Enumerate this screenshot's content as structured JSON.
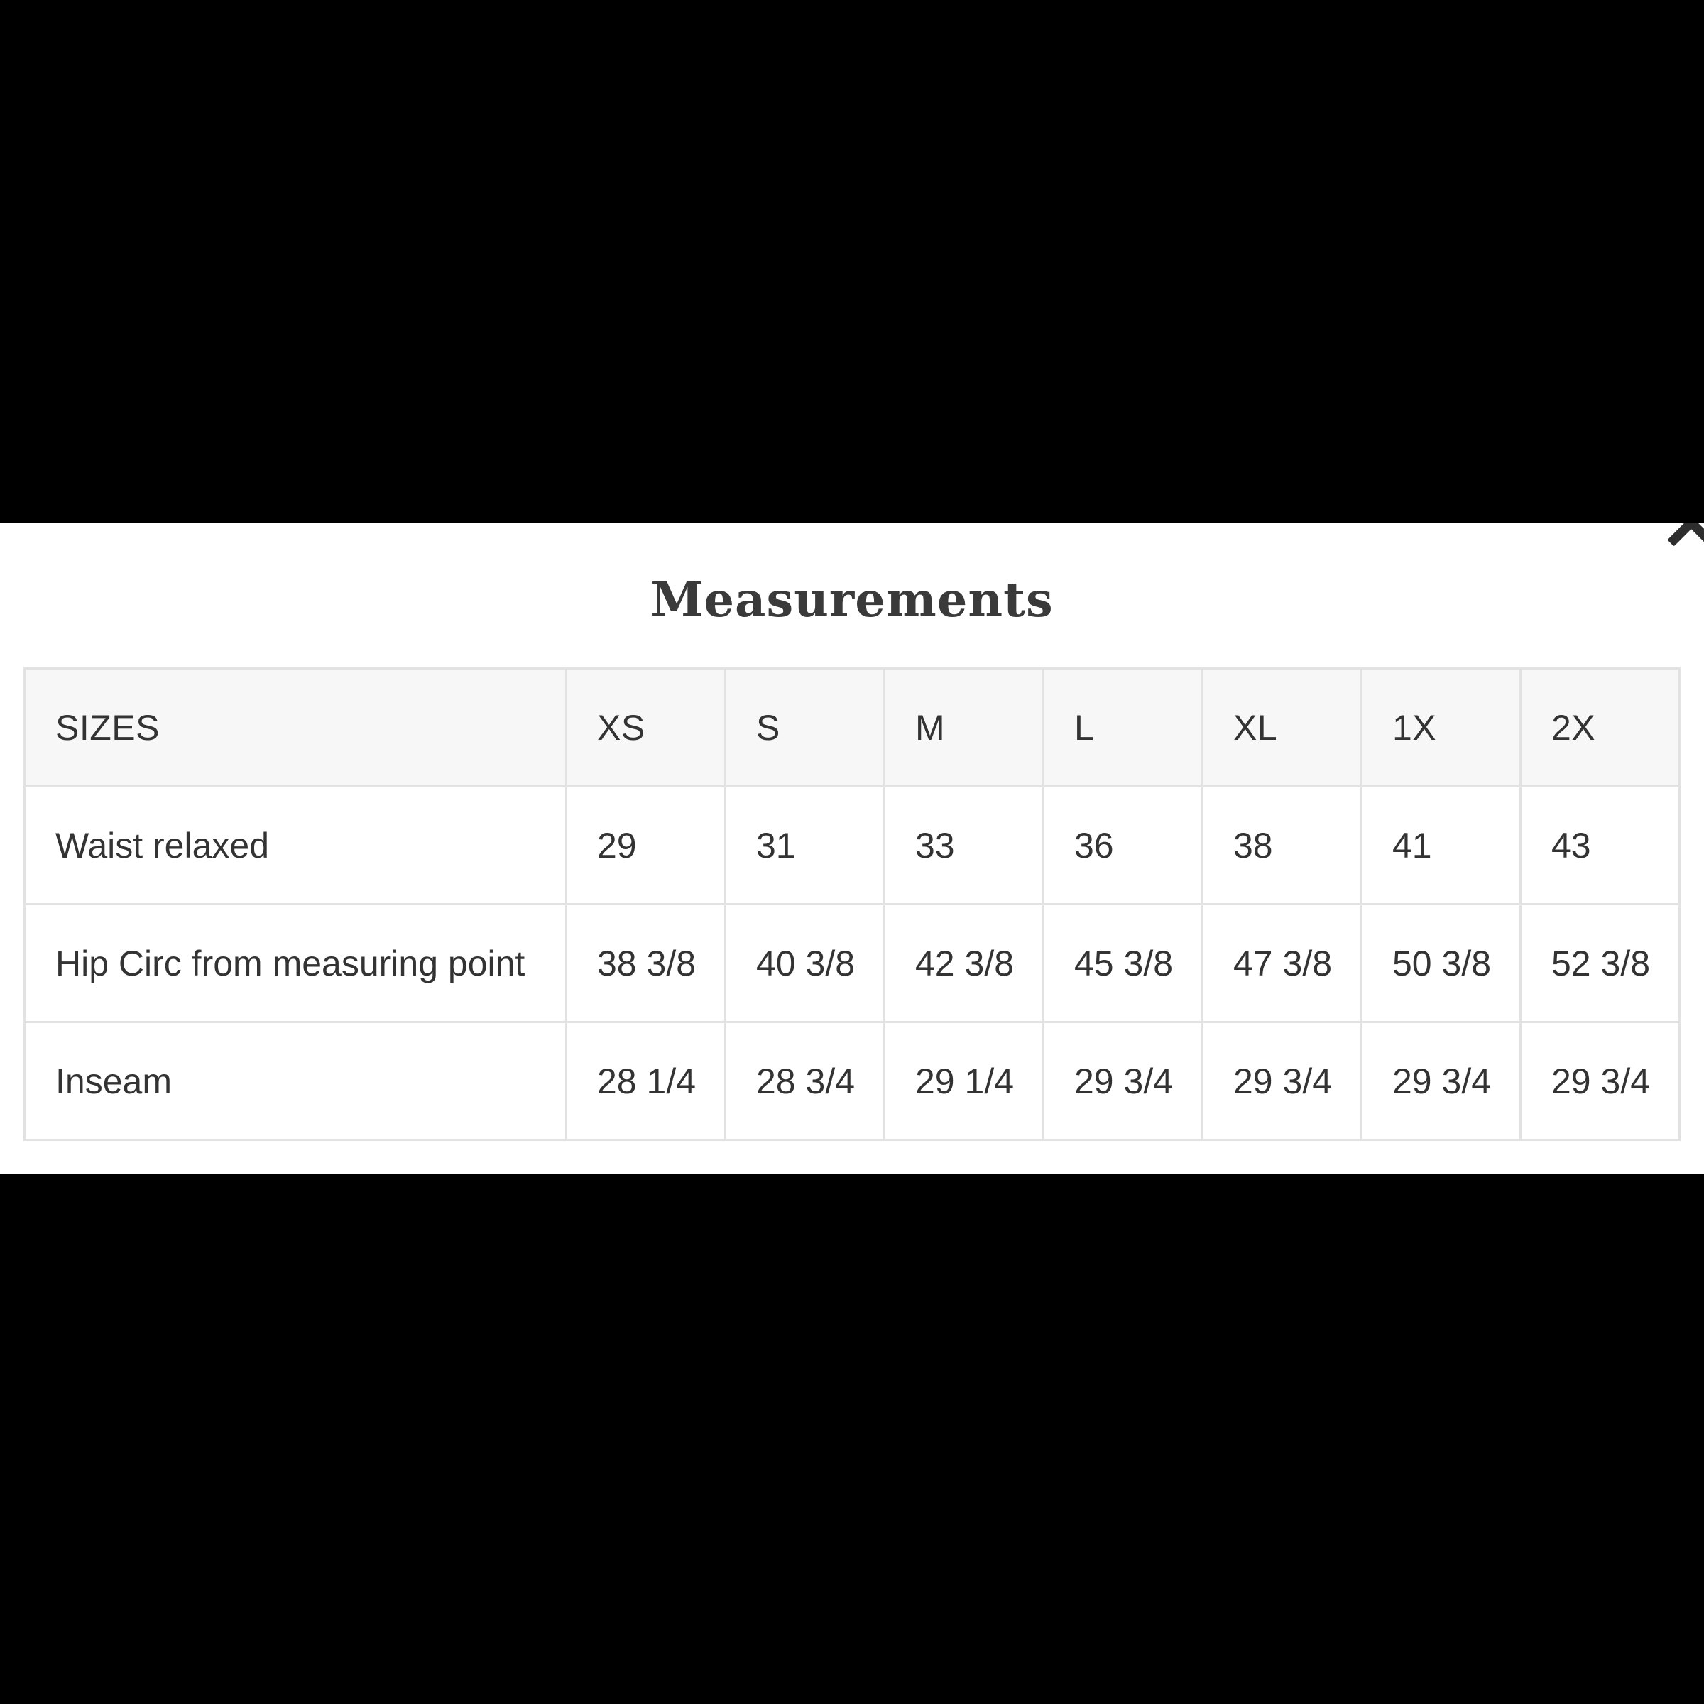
{
  "panel": {
    "title": "Measurements"
  },
  "table": {
    "header": [
      "SIZES",
      "XS",
      "S",
      "M",
      "L",
      "XL",
      "1X",
      "2X"
    ],
    "rows": [
      {
        "label": "Waist relaxed",
        "values": [
          "29",
          "31",
          "33",
          "36",
          "38",
          "41",
          "43"
        ]
      },
      {
        "label": "Hip Circ from measuring point",
        "values": [
          "38 3/8",
          "40 3/8",
          "42 3/8",
          "45 3/8",
          "47 3/8",
          "50 3/8",
          "52 3/8"
        ]
      },
      {
        "label": "Inseam",
        "values": [
          "28 1/4",
          "28 3/4",
          "29 1/4",
          "29 3/4",
          "29 3/4",
          "29 3/4",
          "29 3/4"
        ]
      }
    ]
  },
  "colors": {
    "page_background": "#000000",
    "panel_background": "#ffffff",
    "header_row_background": "#f7f7f7",
    "table_border": "#e2e2e2",
    "text": "#333333",
    "title_text": "#3a3a3a",
    "close_icon": "#2e2e2e"
  },
  "icons": {
    "close": "close-x-icon"
  }
}
